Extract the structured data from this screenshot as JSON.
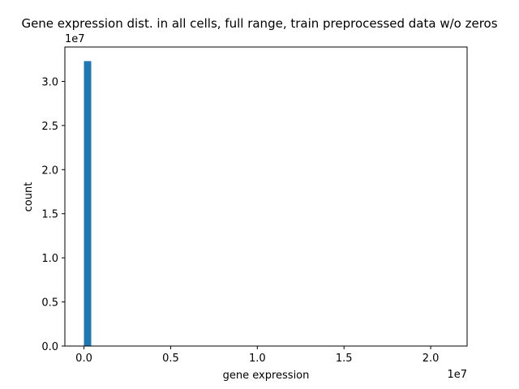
{
  "chart_data": {
    "type": "bar",
    "title": "Gene expression dist. in all cells, full range, train preprocessed data w/o zeros",
    "xlabel": "gene expression",
    "ylabel": "count",
    "x_offset_label": "1e7",
    "y_offset_label": "1e7",
    "xlim": [
      -0.11,
      2.21
    ],
    "ylim": [
      0,
      3.39
    ],
    "xticks": [
      0,
      0.5,
      1,
      1.5,
      2
    ],
    "xtick_labels": [
      "0.0",
      "0.5",
      "1.0",
      "1.5",
      "2.0"
    ],
    "yticks": [
      0,
      0.5,
      1,
      1.5,
      2,
      2.5,
      3
    ],
    "ytick_labels": [
      "0.0",
      "0.5",
      "1.0",
      "1.5",
      "2.0",
      "2.5",
      "3.0"
    ],
    "bins": [
      {
        "x0": 0.0,
        "x1": 0.042,
        "count": 3.23
      }
    ],
    "bar_color": "#1f77b4",
    "grid": false,
    "legend": "none"
  }
}
